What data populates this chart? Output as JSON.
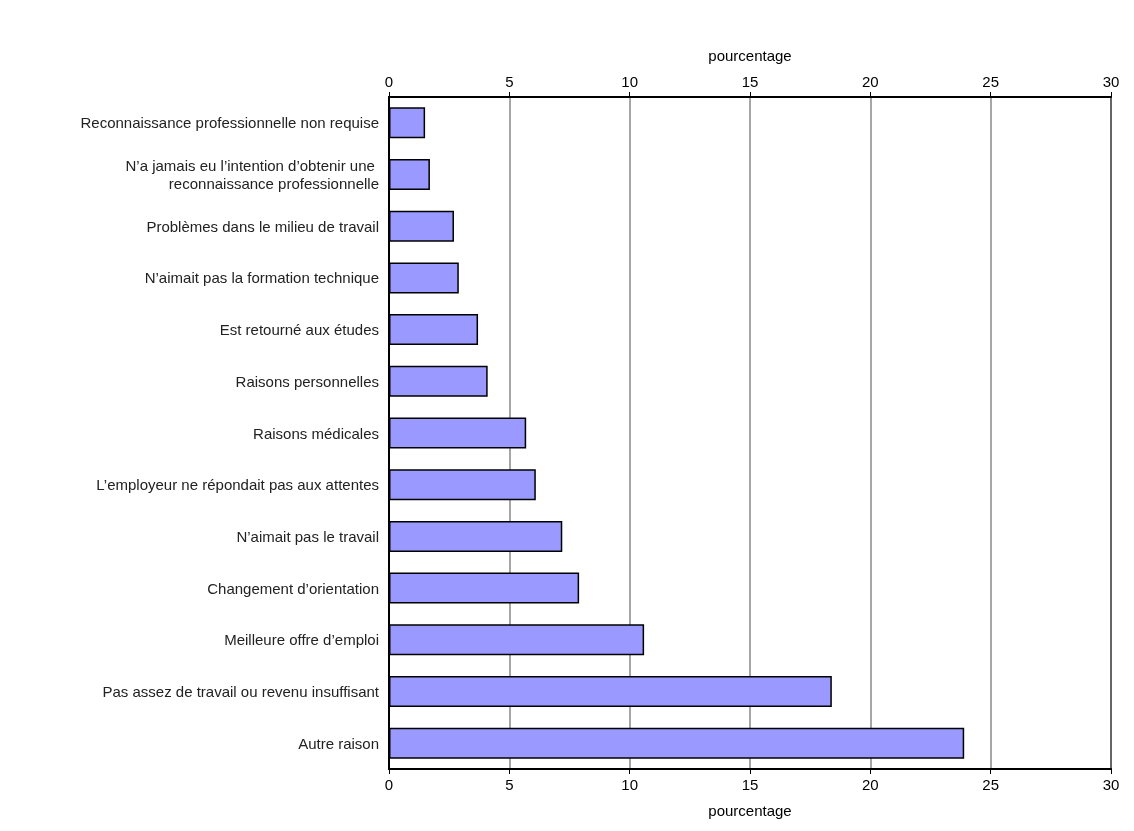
{
  "chart_data": {
    "type": "bar",
    "orientation": "horizontal",
    "categories": [
      "Reconnaissance professionnelle non requise",
      "N’a jamais eu l’intention d’obtenir une reconnaissance professionnelle",
      "Problèmes dans le milieu de travail",
      "N’aimait pas la formation technique",
      "Est retourné aux études",
      "Raisons personnelles",
      "Raisons médicales",
      "L’employeur ne répondait pas aux attentes",
      "N’aimait pas le travail",
      "Changement d’orientation",
      "Meilleure offre d’emploi",
      "Pas assez de travail ou revenu insuffisant",
      "Autre raison"
    ],
    "values": [
      1.5,
      1.7,
      2.7,
      2.9,
      3.7,
      4.1,
      5.7,
      6.1,
      7.2,
      7.9,
      10.6,
      18.4,
      23.9
    ],
    "color": "#9999ff",
    "xlabel": "pourcentage",
    "xlim": [
      0,
      30
    ],
    "xticks": [
      0,
      5,
      10,
      15,
      20,
      25,
      30
    ],
    "x2label": "pourcentage",
    "x2lim": [
      0,
      30
    ],
    "x2ticks": [
      0,
      5,
      10,
      15,
      20,
      25,
      30
    ],
    "grid": "x"
  }
}
